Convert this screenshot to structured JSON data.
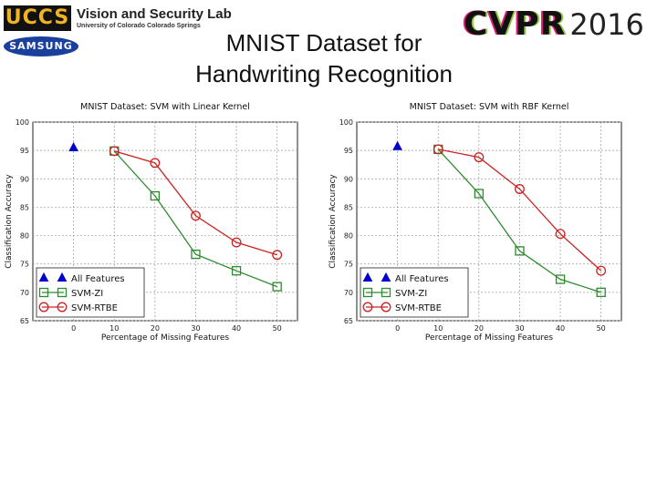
{
  "header": {
    "uccs_logo_text": "UCCS",
    "lab_name": "Vision and Security Lab",
    "lab_subtitle": "University of Colorado Colorado Springs",
    "samsung_logo_text": "SAMSUNG",
    "cvpr_text": "CVPR",
    "cvpr_year": "2016",
    "title_line1": "MNIST Dataset for",
    "title_line2": "Handwriting Recognition"
  },
  "colors": {
    "all_features": "#0000cc",
    "svm_zi": "#2e8b2e",
    "svm_rtbe": "#cc2222"
  },
  "chart_data": [
    {
      "type": "line",
      "title": "MNIST Dataset: SVM with Linear Kernel",
      "xlabel": "Percentage of Missing Features",
      "ylabel": "Classification Accuracy",
      "xlim": [
        -10,
        55
      ],
      "ylim": [
        65,
        100
      ],
      "xticks": [
        0,
        10,
        20,
        30,
        40,
        50
      ],
      "yticks": [
        65,
        70,
        75,
        80,
        85,
        90,
        95,
        100
      ],
      "grid": true,
      "legend_position": "bottom-left",
      "series": [
        {
          "name": "All Features",
          "marker": "triangle",
          "x": [
            0
          ],
          "y": [
            95.5
          ]
        },
        {
          "name": "SVM-ZI",
          "marker": "square",
          "x": [
            10,
            20,
            30,
            40,
            50
          ],
          "y": [
            94.9,
            87.0,
            76.7,
            73.8,
            71.0
          ]
        },
        {
          "name": "SVM-RTBE",
          "marker": "circle",
          "x": [
            10,
            20,
            30,
            40,
            50
          ],
          "y": [
            94.9,
            92.8,
            83.5,
            78.8,
            76.6
          ]
        }
      ]
    },
    {
      "type": "line",
      "title": "MNIST Dataset: SVM with RBF Kernel",
      "xlabel": "Percentage of Missing Features",
      "ylabel": "Classification Accuracy",
      "xlim": [
        -10,
        55
      ],
      "ylim": [
        65,
        100
      ],
      "xticks": [
        0,
        10,
        20,
        30,
        40,
        50
      ],
      "yticks": [
        65,
        70,
        75,
        80,
        85,
        90,
        95,
        100
      ],
      "grid": true,
      "legend_position": "bottom-left",
      "series": [
        {
          "name": "All Features",
          "marker": "triangle",
          "x": [
            0
          ],
          "y": [
            95.7
          ]
        },
        {
          "name": "SVM-ZI",
          "marker": "square",
          "x": [
            10,
            20,
            30,
            40,
            50
          ],
          "y": [
            95.2,
            87.4,
            77.3,
            72.3,
            70.0
          ]
        },
        {
          "name": "SVM-RTBE",
          "marker": "circle",
          "x": [
            10,
            20,
            30,
            40,
            50
          ],
          "y": [
            95.2,
            93.8,
            88.2,
            80.3,
            73.8
          ]
        }
      ]
    }
  ]
}
